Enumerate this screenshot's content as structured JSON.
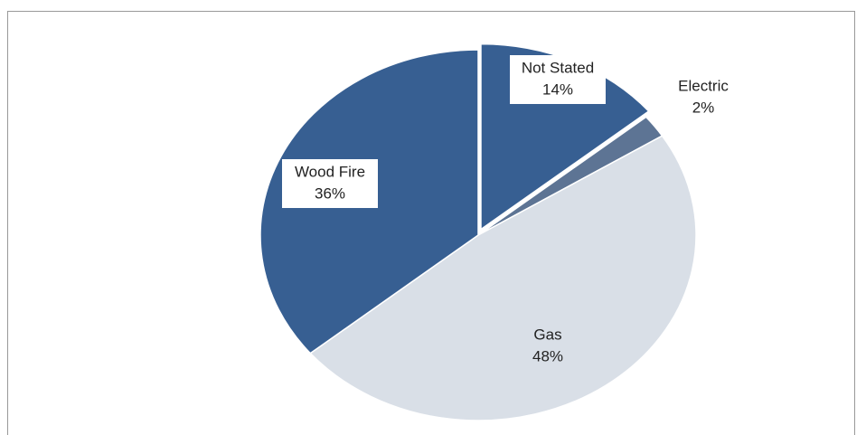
{
  "chart_data": {
    "type": "pie",
    "categories": [
      "Not Stated",
      "Electric",
      "Gas",
      "Wood Fire"
    ],
    "values": [
      14,
      2,
      48,
      36
    ],
    "value_labels": [
      "14%",
      "2%",
      "48%",
      "36%"
    ],
    "colors": [
      "#375f92",
      "#5d7494",
      "#d9dfe7",
      "#375f92"
    ],
    "exploded": [
      0
    ]
  }
}
